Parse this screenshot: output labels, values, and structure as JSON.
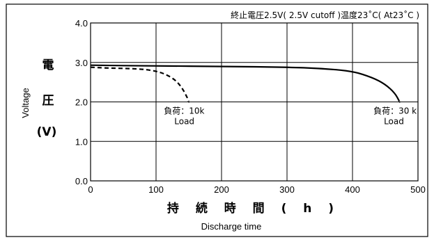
{
  "chart_data": {
    "type": "line",
    "title": "終止電圧2.5V( 2.5V cutoff )温度23˚C( At23˚C )",
    "ylabel_jp_chars": [
      "電",
      "圧",
      "(V)"
    ],
    "ylabel_en": "Voltage",
    "xlabel_jp": "持 続 時 間 ( h )",
    "xlabel_en": "Discharge time",
    "xlim": [
      0,
      500
    ],
    "ylim": [
      0.0,
      4.0
    ],
    "x_ticks": [
      "0",
      "100",
      "200",
      "300",
      "400",
      "500"
    ],
    "x_tick_values": [
      0,
      100,
      200,
      300,
      400,
      500
    ],
    "y_ticks": [
      "0.0",
      "1.0",
      "2.0",
      "3.0",
      "4.0"
    ],
    "y_tick_values": [
      0,
      1,
      2,
      3,
      4
    ],
    "grid": true,
    "series": [
      {
        "style": "dashed",
        "label_line1": "負荷：10k",
        "label_line2": "Load",
        "label_anchor": [
          112,
          1.7
        ],
        "points": [
          [
            0,
            2.88
          ],
          [
            20,
            2.86
          ],
          [
            50,
            2.85
          ],
          [
            80,
            2.83
          ],
          [
            100,
            2.78
          ],
          [
            115,
            2.7
          ],
          [
            130,
            2.55
          ],
          [
            140,
            2.35
          ],
          [
            148,
            2.1
          ],
          [
            150,
            2.0
          ]
        ]
      },
      {
        "style": "solid",
        "label_line1": "負荷：30 k",
        "label_line2": "Load",
        "label_anchor": [
          432,
          1.7
        ],
        "points": [
          [
            0,
            2.93
          ],
          [
            100,
            2.91
          ],
          [
            200,
            2.9
          ],
          [
            300,
            2.88
          ],
          [
            350,
            2.85
          ],
          [
            400,
            2.78
          ],
          [
            430,
            2.62
          ],
          [
            450,
            2.45
          ],
          [
            465,
            2.22
          ],
          [
            472,
            2.0
          ]
        ]
      }
    ]
  }
}
